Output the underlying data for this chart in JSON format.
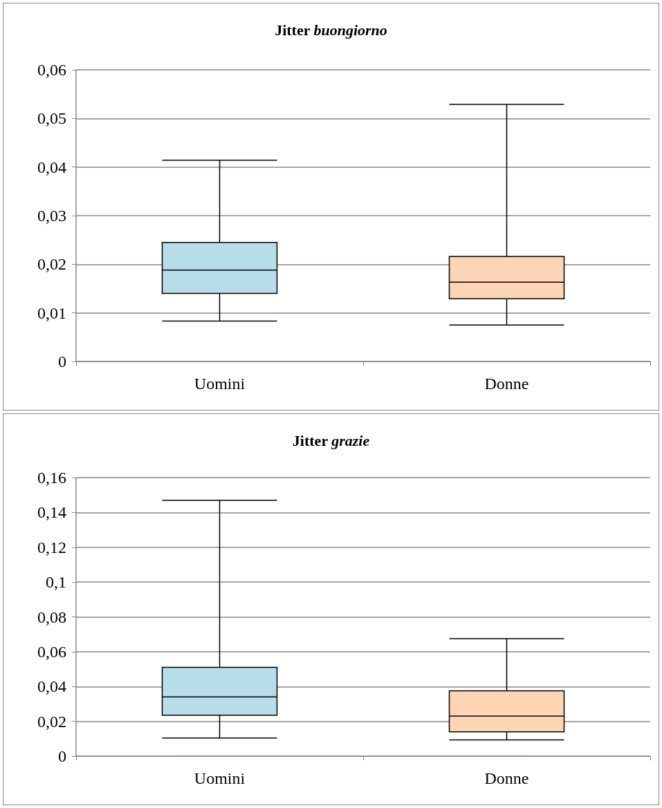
{
  "chart_data": [
    {
      "type": "box",
      "title": "Jitter buongiorno",
      "categories": [
        "Uomini",
        "Donne"
      ],
      "colors": [
        "#b7dde8",
        "#fcd5b5"
      ],
      "boxes": [
        {
          "low": 0.0083,
          "q1": 0.014,
          "median": 0.0188,
          "q3": 0.0245,
          "high": 0.0414
        },
        {
          "low": 0.0075,
          "q1": 0.0129,
          "median": 0.0163,
          "q3": 0.0216,
          "high": 0.0529
        }
      ],
      "ylim": [
        0,
        0.06
      ],
      "yticks": [
        0,
        {
          "value": 0.01,
          "label": "0,01"
        },
        {
          "value": 0.02,
          "label": "0,02"
        },
        {
          "value": 0.03,
          "label": "0,03"
        },
        {
          "value": 0.04,
          "label": "0,04"
        },
        {
          "value": 0.05,
          "label": "0,05"
        },
        {
          "value": 0.06,
          "label": "0,06"
        }
      ],
      "grid": "y"
    },
    {
      "type": "box",
      "title": "Jitter grazie",
      "categories": [
        "Uomini",
        "Donne"
      ],
      "colors": [
        "#b7dde8",
        "#fcd5b5"
      ],
      "boxes": [
        {
          "low": 0.0104,
          "q1": 0.0235,
          "median": 0.034,
          "q3": 0.051,
          "high": 0.147
        },
        {
          "low": 0.0093,
          "q1": 0.014,
          "median": 0.023,
          "q3": 0.0375,
          "high": 0.0675
        }
      ],
      "ylim": [
        0,
        0.16
      ],
      "yticks": [
        0,
        {
          "value": 0.02,
          "label": "0,02"
        },
        {
          "value": 0.04,
          "label": "0,04"
        },
        {
          "value": 0.06,
          "label": "0,06"
        },
        {
          "value": 0.08,
          "label": "0,08"
        },
        {
          "value": 0.1,
          "label": "0,1"
        },
        {
          "value": 0.12,
          "label": "0,12"
        },
        {
          "value": 0.14,
          "label": "0,14"
        },
        {
          "value": 0.16,
          "label": "0,16"
        }
      ],
      "grid": "y"
    }
  ]
}
